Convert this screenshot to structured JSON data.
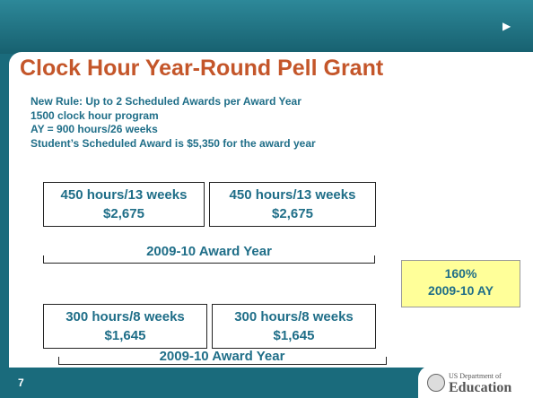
{
  "title": "Clock Hour Year-Round Pell Grant",
  "rules": [
    "New Rule:  Up to 2 Scheduled Awards per Award Year",
    "1500 clock hour program",
    "AY = 900 hours/26 weeks",
    "Student’s Scheduled Award is $5,350 for the award year"
  ],
  "row1": {
    "boxes": [
      {
        "hours": "450 hours/13 weeks",
        "amount": "$2,675"
      },
      {
        "hours": "450 hours/13 weeks",
        "amount": "$2,675"
      }
    ],
    "label": "2009-10 Award Year"
  },
  "row2": {
    "boxes": [
      {
        "hours": "300 hours/8 weeks",
        "amount": "$1,645"
      },
      {
        "hours": "300 hours/8 weeks",
        "amount": "$1,645"
      }
    ],
    "label": "2009-10 Award Year"
  },
  "callout": [
    "160%",
    "2009-10 AY"
  ],
  "footer": {
    "slide_number": "7",
    "logo_small": "US Department of",
    "logo_big": "Education"
  }
}
